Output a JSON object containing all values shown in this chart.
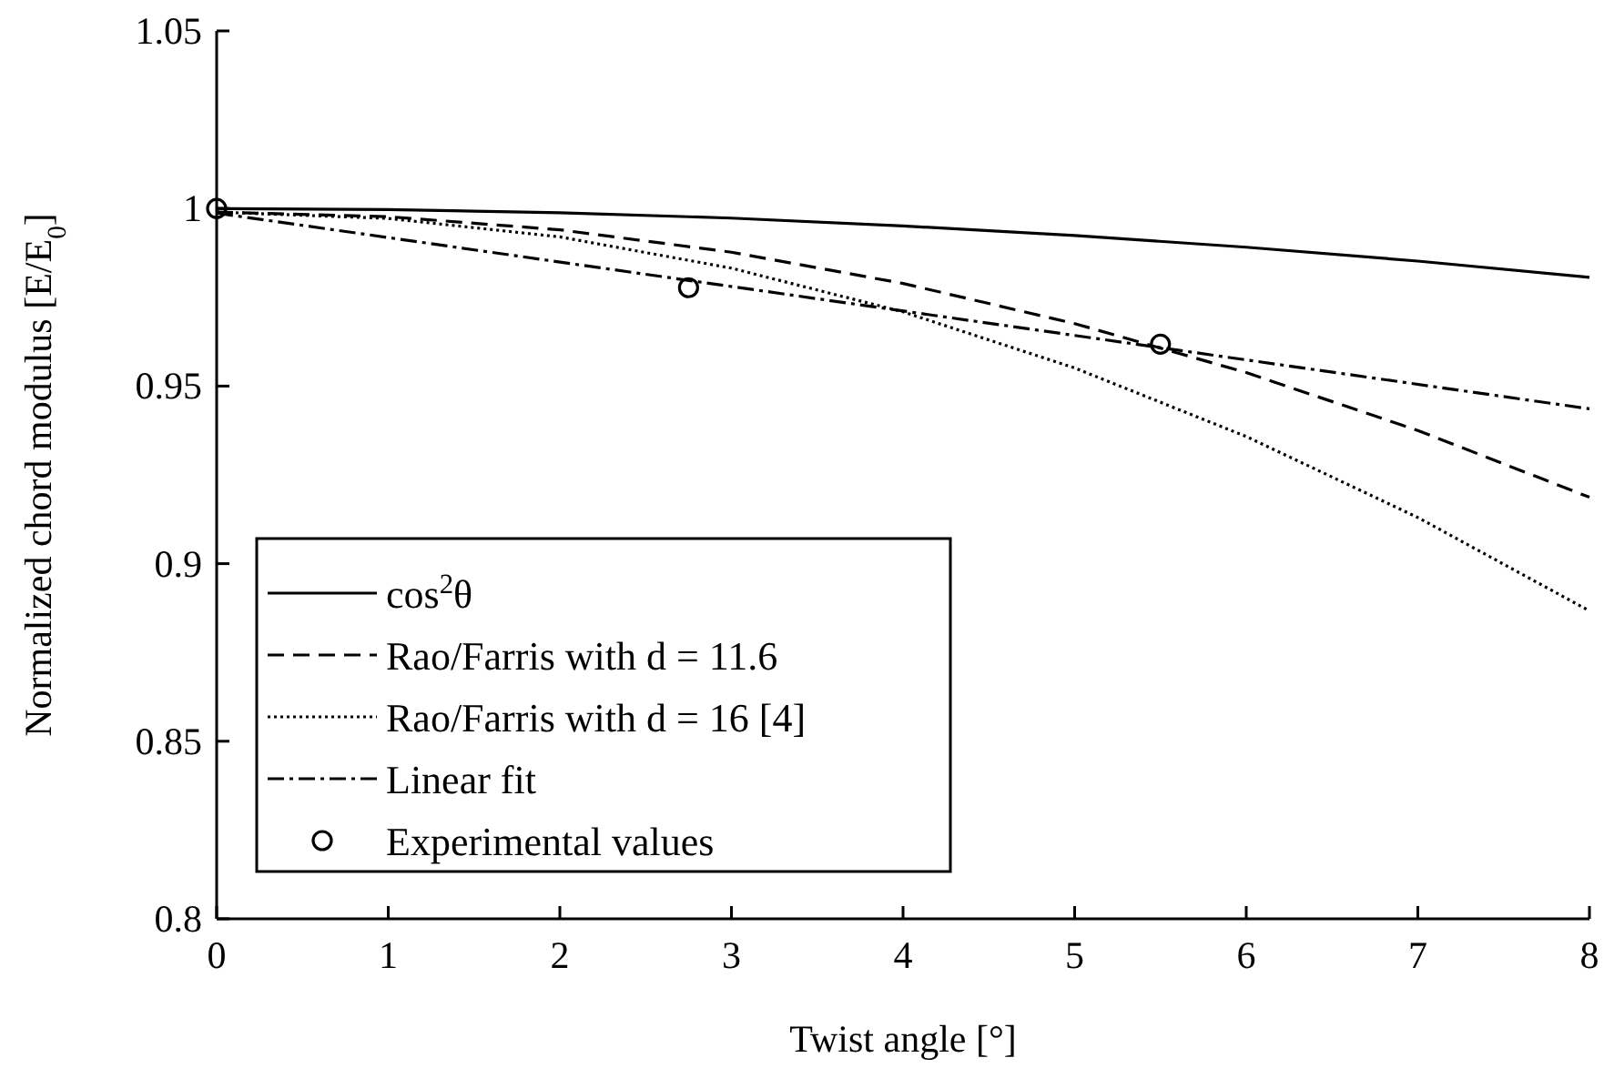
{
  "chart_data": {
    "type": "line",
    "xlabel": "Twist angle [°]",
    "ylabel": "Normalized chord modulus [E/E$_{0}$]",
    "xlim": [
      0,
      8
    ],
    "ylim": [
      0.8,
      1.05
    ],
    "xticks": [
      0,
      1,
      2,
      3,
      4,
      5,
      6,
      7,
      8
    ],
    "yticks": [
      0.8,
      0.85,
      0.9,
      0.95,
      1,
      1.05
    ],
    "grid": false,
    "legend": "bottom left",
    "series": [
      {
        "name": "cos$^{2}$θ",
        "color": "#000000",
        "line_style": "solid",
        "x": [
          0,
          1,
          2,
          3,
          4,
          5,
          6,
          7,
          8
        ],
        "values": [
          1,
          0.9997,
          0.9988,
          0.9973,
          0.9951,
          0.9924,
          0.9891,
          0.9852,
          0.9806
        ]
      },
      {
        "name": "Rao/Farris with d = 11.6",
        "color": "#000000",
        "line_style": "dashed",
        "x": [
          0,
          1,
          2,
          3,
          4,
          5,
          6,
          7,
          8
        ],
        "values": [
          0.999,
          0.9977,
          0.994,
          0.9877,
          0.9789,
          0.9676,
          0.9538,
          0.9375,
          0.9187
        ]
      },
      {
        "name": "Rao/Farris with d = 16 [4]",
        "color": "#000000",
        "line_style": "dotted",
        "x": [
          0,
          1,
          2,
          3,
          4,
          5,
          6,
          7,
          8
        ],
        "values": [
          0.999,
          0.9972,
          0.992,
          0.9832,
          0.9709,
          0.9551,
          0.9358,
          0.913,
          0.8867
        ]
      },
      {
        "name": "Linear fit",
        "color": "#000000",
        "line_style": "dashdot",
        "x": [
          0,
          8
        ],
        "values": [
          0.9987,
          0.9436
        ]
      },
      {
        "name": "Experimental values",
        "type": "scatter",
        "color": "#000000",
        "marker": "circle",
        "x": [
          0,
          2.75,
          5.5
        ],
        "values": [
          1,
          0.9777,
          0.9618
        ]
      }
    ]
  }
}
